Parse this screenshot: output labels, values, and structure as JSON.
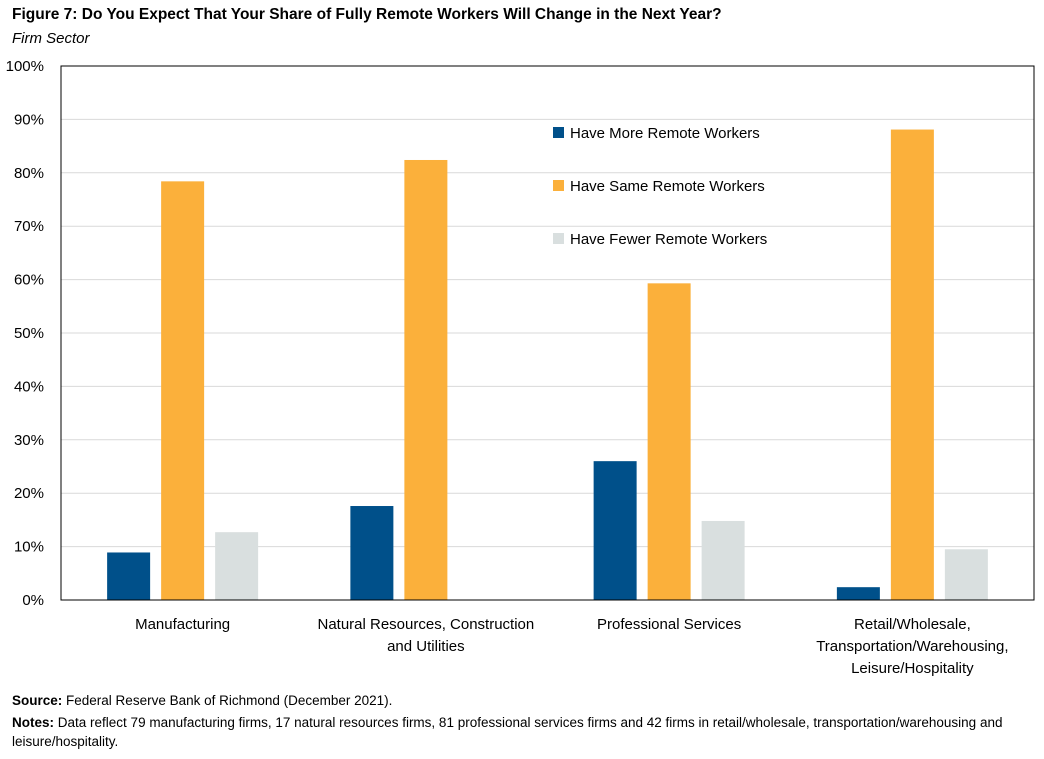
{
  "figure": {
    "title": "Figure 7: Do You Expect That Your Share of Fully Remote Workers Will Change in the Next Year?",
    "subtitle": "Firm Sector"
  },
  "source": {
    "label": "Source:",
    "text": "Federal Reserve Bank of Richmond (December 2021)."
  },
  "notes": {
    "label": "Notes:",
    "text": "Data reflect 79 manufacturing firms, 17 natural resources firms, 81 professional services firms and 42 firms in retail/wholesale, transportation/warehousing and leisure/hospitality."
  },
  "colors": {
    "more": "#00508a",
    "same": "#fbb03b",
    "fewer": "#d9dfdf",
    "grid": "#d9d9d9",
    "frame": "#000000"
  },
  "chart_data": {
    "type": "bar",
    "title": "Figure 7: Do You Expect That Your Share of Fully Remote Workers Will Change in the Next Year?",
    "subtitle": "Firm Sector",
    "categories": [
      [
        "Manufacturing"
      ],
      [
        "Natural Resources, Construction",
        "and Utilities"
      ],
      [
        "Professional Services"
      ],
      [
        "Retail/Wholesale,",
        "Transportation/Warehousing,",
        "Leisure/Hospitality"
      ]
    ],
    "series": [
      {
        "name": "Have More Remote Workers",
        "values": [
          8.9,
          17.6,
          26.0,
          2.4
        ]
      },
      {
        "name": "Have Same Remote Workers",
        "values": [
          78.4,
          82.4,
          59.3,
          88.1
        ]
      },
      {
        "name": "Have Fewer Remote Workers",
        "values": [
          12.7,
          0,
          14.8,
          9.5
        ]
      }
    ],
    "ylim": [
      0,
      100
    ],
    "yticks": [
      0,
      10,
      20,
      30,
      40,
      50,
      60,
      70,
      80,
      90,
      100
    ],
    "ytick_labels": [
      "0%",
      "10%",
      "20%",
      "30%",
      "40%",
      "50%",
      "60%",
      "70%",
      "80%",
      "90%",
      "100%"
    ],
    "xlabel": "",
    "ylabel": "",
    "grid": true,
    "legend_position": "top-right"
  }
}
